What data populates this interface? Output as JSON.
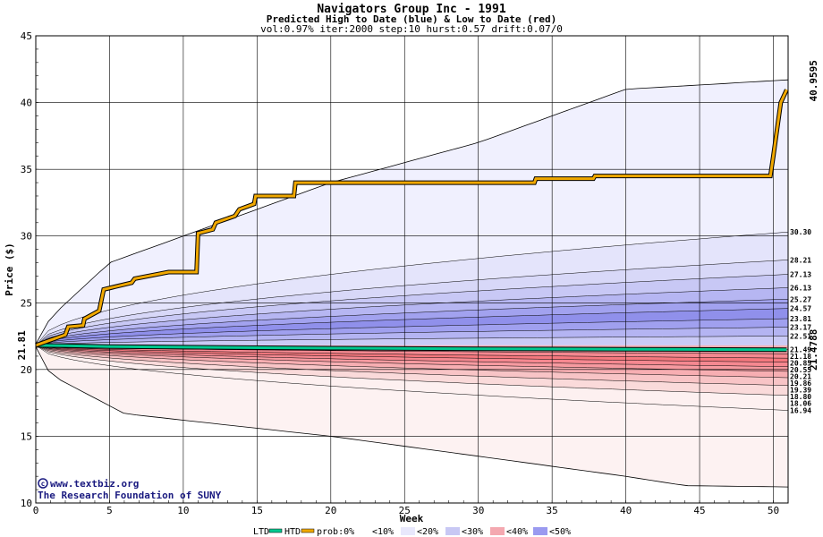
{
  "header": {
    "title": "Navigators Group Inc - 1991",
    "subtitle": "Predicted High to Date (blue) &  Low to Date (red)",
    "params": "vol:0.97% iter:2000 step:10 hurst:0.57 drift:0.07/0"
  },
  "credits": {
    "line1": "www.textbiz.org",
    "line2": "The Research Foundation of SUNY"
  },
  "colors": {
    "htd": "#f0a800",
    "ltd": "#00c890",
    "high_label": "#a08000",
    "low_label": "#008060",
    "start_label": "#006000"
  },
  "chart_data": {
    "type": "area",
    "title": "Navigators Group Inc - 1991",
    "xlabel": "Week",
    "ylabel": "Price ($)",
    "xlim": [
      0,
      51
    ],
    "ylim": [
      10,
      45
    ],
    "x_ticks": [
      0,
      5,
      10,
      15,
      20,
      25,
      30,
      35,
      40,
      45,
      50
    ],
    "y_ticks": [
      10,
      15,
      20,
      25,
      30,
      35,
      40,
      45
    ],
    "grid": true,
    "start_price": 21.81,
    "start_label": "21.81",
    "htd_end_label": "40.9595",
    "ltd_end_label": "21.4788",
    "upper_levels": [
      30.3,
      28.21,
      27.13,
      26.13,
      25.27,
      24.57,
      23.81,
      23.17,
      22.51
    ],
    "upper_level_labels": [
      "30.30",
      "28.21",
      "27.13",
      "26.13",
      "25.27",
      "24.57",
      "23.81",
      "23.17",
      "22.51"
    ],
    "lower_levels": [
      21.49,
      21.18,
      20.85,
      20.55,
      20.21,
      19.86,
      19.39,
      18.8,
      18.06,
      16.94
    ],
    "lower_level_labels": [
      "21.49",
      "21.18",
      "20.85",
      "20.55",
      "20.21",
      "19.86",
      "19.39",
      "18.80",
      "18.06",
      "16.94"
    ],
    "envelope_upper": [
      [
        0,
        21.9
      ],
      [
        1,
        23.9
      ],
      [
        5,
        28.0
      ],
      [
        10,
        30.0
      ],
      [
        20,
        34.0
      ],
      [
        30,
        37.0
      ],
      [
        40,
        41.0
      ],
      [
        51,
        41.7
      ]
    ],
    "envelope_lower": [
      [
        0,
        21.7
      ],
      [
        1,
        19.6
      ],
      [
        6,
        16.7
      ],
      [
        10,
        16.2
      ],
      [
        20,
        15.0
      ],
      [
        30,
        13.5
      ],
      [
        40,
        12.0
      ],
      [
        44,
        11.3
      ],
      [
        51,
        11.2
      ]
    ],
    "htd_series": [
      [
        0,
        21.81
      ],
      [
        1,
        22.2
      ],
      [
        2,
        22.6
      ],
      [
        2.2,
        23.2
      ],
      [
        3.2,
        23.3
      ],
      [
        3.3,
        23.8
      ],
      [
        4.3,
        24.4
      ],
      [
        4.6,
        26.0
      ],
      [
        6.5,
        26.5
      ],
      [
        6.7,
        26.8
      ],
      [
        9.0,
        27.3
      ],
      [
        10.9,
        27.3
      ],
      [
        11.0,
        30.2
      ],
      [
        12.0,
        30.5
      ],
      [
        12.2,
        31.0
      ],
      [
        13.5,
        31.5
      ],
      [
        13.8,
        32.0
      ],
      [
        14.8,
        32.4
      ],
      [
        14.9,
        33.0
      ],
      [
        17.5,
        33.0
      ],
      [
        17.6,
        34.0
      ],
      [
        33.8,
        34.0
      ],
      [
        33.9,
        34.3
      ],
      [
        37.8,
        34.3
      ],
      [
        37.9,
        34.5
      ],
      [
        49.8,
        34.5
      ],
      [
        50.0,
        36.0
      ],
      [
        50.5,
        40.0
      ],
      [
        50.9,
        40.96
      ]
    ],
    "ltd_series": [
      [
        0,
        21.81
      ],
      [
        2,
        21.78
      ],
      [
        5,
        21.72
      ],
      [
        13,
        21.65
      ],
      [
        20,
        21.6
      ],
      [
        30,
        21.55
      ],
      [
        40,
        21.52
      ],
      [
        50.9,
        21.48
      ]
    ],
    "legend": [
      "LTD",
      "HTD",
      "prob:0%",
      "<10%",
      "<20%",
      "<30%",
      "<40%",
      "<50%"
    ]
  }
}
